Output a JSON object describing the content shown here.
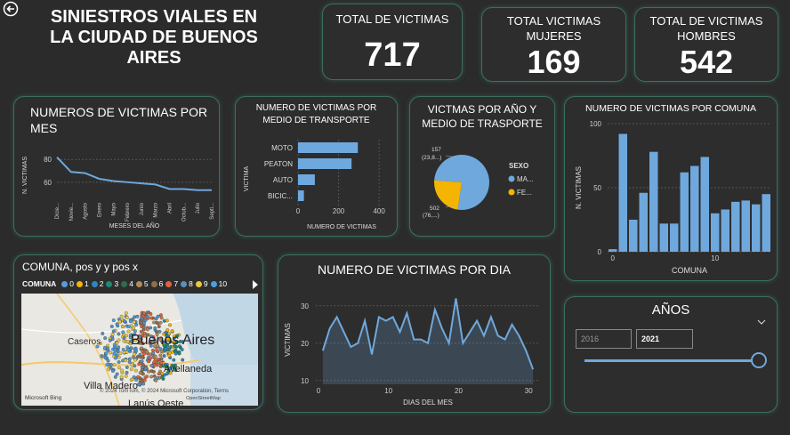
{
  "header": {
    "title_lines": [
      "SINIESTROS VIALES EN",
      "LA CIUDAD DE BUENOS",
      "AIRES"
    ]
  },
  "kpis": {
    "total": {
      "label": "TOTAL DE VICTIMAS",
      "value": "717"
    },
    "women": {
      "label_lines": [
        "TOTAL VICTIMAS",
        "MUJERES"
      ],
      "value": "169"
    },
    "men": {
      "label_lines": [
        "TOTAL DE VICTIMAS",
        "HOMBRES"
      ],
      "value": "542"
    }
  },
  "colors": {
    "accent": "#6fa8dc",
    "orange": "#f5b400",
    "card_border": "#3c6e5f"
  },
  "slicer": {
    "title": "AÑOS",
    "from": "2016",
    "to": "2021",
    "chevron": "chevron-down-icon"
  },
  "map": {
    "title": "COMUNA, pos y y pos x",
    "legend_label": "COMUNA",
    "legend_items": [
      "0",
      "1",
      "2",
      "3",
      "4",
      "5",
      "6",
      "7",
      "8",
      "9",
      "10"
    ],
    "legend_colors": [
      "#5b9bd5",
      "#f5b400",
      "#2e86c1",
      "#1f8a70",
      "#2e6b4f",
      "#b38b59",
      "#8e6f4d",
      "#e06040",
      "#5a8fc0",
      "#e8c840",
      "#4aa0e0"
    ],
    "places": [
      "Caseros",
      "Buenos Aires",
      "Avellaneda",
      "Villa Madero",
      "Lanús Oeste"
    ],
    "attribution": "© 2024 TomTom, © 2024 Microsoft Corporation, Terms",
    "attribution2": "OpenStreetMap",
    "bing": "Microsoft Bing"
  },
  "chart_data": [
    {
      "type": "line",
      "title": "NUMEROS DE VICTIMAS POR MES",
      "xlabel": "MESES DEL AÑO",
      "ylabel": "N. VICTIMAS",
      "categories": [
        "Dicie...",
        "Novie...",
        "Agosto",
        "Enero",
        "Mayo",
        "Febrero",
        "Junio",
        "Marzo",
        "Abril",
        "Octub...",
        "Julio",
        "Septi..."
      ],
      "values": [
        82,
        69,
        68,
        63,
        61,
        60,
        59,
        58,
        54,
        54,
        53,
        53
      ],
      "ylim": [
        45,
        88
      ],
      "yticks": [
        60,
        80
      ]
    },
    {
      "type": "bar",
      "orientation": "horizontal",
      "title": "NUMERO DE VICTIMAS POR MEDIO DE TRANSPORTE",
      "xlabel": "NUMERO DE VICTIMAS",
      "ylabel": "VICTIMA",
      "categories": [
        "MOTO",
        "PEATON",
        "AUTO",
        "BICIC..."
      ],
      "values": [
        295,
        264,
        83,
        29
      ],
      "xlim": [
        0,
        430
      ],
      "xticks": [
        0,
        200,
        400
      ]
    },
    {
      "type": "pie",
      "title": "VICTMAS POR AÑO Y MEDIO DE TRASPORTE",
      "legend_title": "SEXO",
      "labels": [
        "MA...",
        "FE..."
      ],
      "values": [
        502,
        157
      ],
      "data_labels": [
        "502 (76,...)",
        "157 (23,8...)"
      ]
    },
    {
      "type": "bar",
      "title": "NUMERO DE VICTIMAS POR COMUNA",
      "xlabel": "COMUNA",
      "ylabel": "N. VICTIMAS",
      "x": [
        0,
        1,
        2,
        3,
        4,
        5,
        6,
        7,
        8,
        9,
        10,
        11,
        12,
        13,
        14,
        15
      ],
      "values": [
        2,
        92,
        25,
        46,
        78,
        22,
        22,
        62,
        67,
        74,
        30,
        33,
        39,
        40,
        37,
        45
      ],
      "ylim": [
        0,
        100
      ],
      "yticks": [
        0,
        50,
        100
      ],
      "xticks": [
        0,
        10
      ]
    },
    {
      "type": "area",
      "title": "NUMERO DE VICTIMAS POR DIA",
      "xlabel": "DIAS DEL MES",
      "ylabel": "VICTIMAS",
      "x": [
        1,
        2,
        3,
        4,
        5,
        6,
        7,
        8,
        9,
        10,
        11,
        12,
        13,
        14,
        15,
        16,
        17,
        18,
        19,
        20,
        21,
        22,
        23,
        24,
        25,
        26,
        27,
        28,
        29,
        30,
        31
      ],
      "values": [
        18,
        24,
        27,
        23,
        19,
        20,
        26,
        17,
        27,
        26,
        27,
        23,
        28,
        21,
        21,
        20,
        29,
        24,
        20,
        32,
        20,
        23,
        26,
        22,
        27,
        22,
        21,
        25,
        22,
        18,
        13
      ],
      "ylim": [
        9,
        34
      ],
      "yticks": [
        10,
        20,
        30
      ],
      "xticks": [
        0,
        10,
        20,
        30
      ]
    }
  ]
}
